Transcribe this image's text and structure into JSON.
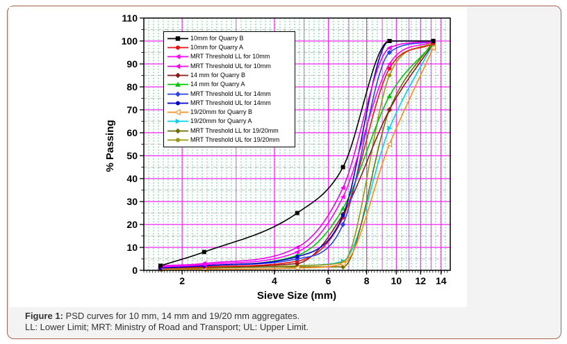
{
  "figure": {
    "caption_prefix": "Figure 1:",
    "caption_text": " PSD curves for 10 mm, 14 mm and 19/20 mm aggregates.",
    "caption_line2": "LL: Lower Limit; MRT: Ministry of Road and Transport; UL: Upper Limit.",
    "border_color": "#a9624e",
    "panel_bg": "#f3f3f3"
  },
  "chart_data": {
    "type": "line",
    "title": "",
    "xlabel": "Sieve Size (mm)",
    "ylabel": "% Passing",
    "x_scale": "log",
    "xlim": [
      1.5,
      15
    ],
    "ylim": [
      0,
      110
    ],
    "x_ticks": [
      2,
      4,
      6,
      8,
      10,
      12,
      14
    ],
    "y_ticks": [
      0,
      10,
      20,
      30,
      40,
      50,
      60,
      70,
      80,
      90,
      100,
      110
    ],
    "grid": {
      "h_major_color": "#f224f2",
      "h_minor_color": "#aaaaaa",
      "v_major_even_color": "#e53ae5",
      "v_major_odd_color": "#b76fd4",
      "v_minor_color": "#00b050",
      "legend_position": "upper-left-inside"
    },
    "x": [
      1.7,
      2.36,
      4.75,
      6.7,
      9.5,
      13.2
    ],
    "series": [
      {
        "name": "10mm for Quarry B",
        "color": "#000000",
        "marker": "square",
        "values": [
          2,
          8,
          25,
          45,
          100,
          100
        ]
      },
      {
        "name": "10mm for Quarry A",
        "color": "#ee1111",
        "marker": "circle",
        "values": [
          1,
          1.5,
          4,
          23,
          88,
          99
        ]
      },
      {
        "name": "MRT Threshold LL for 10mm",
        "color": "#ff00ff",
        "marker": "triangle-left",
        "values": [
          1.5,
          2.5,
          8,
          32,
          90,
          100
        ]
      },
      {
        "name": "MRT Threshold UL for 10mm",
        "color": "#ee00ee",
        "marker": "triangle-left",
        "values": [
          2,
          3,
          10,
          36,
          97,
          100
        ]
      },
      {
        "name": "14 mm for Quarry B",
        "color": "#8b1a1a",
        "marker": "diamond",
        "values": [
          1,
          1.5,
          3,
          24.5,
          70,
          99
        ]
      },
      {
        "name": "14 mm for Quarry A",
        "color": "#00c800",
        "marker": "triangle-up",
        "values": [
          1.5,
          2,
          6.5,
          27,
          76,
          99
        ]
      },
      {
        "name": "MRT Threshold UL for 14mm",
        "color": "#2b3fe8",
        "marker": "diamond",
        "values": [
          1,
          2,
          5,
          20,
          95,
          100
        ]
      },
      {
        "name": "MRT Threshold UL for 14mm",
        "color": "#0000c8",
        "marker": "circle",
        "values": [
          1,
          2,
          6,
          24,
          100,
          100
        ]
      },
      {
        "name": "19/20mm for Quarry B",
        "color": "#ff8c1a",
        "marker": "triangle-left-open",
        "values": [
          0.5,
          0.5,
          1,
          2.8,
          55,
          97
        ]
      },
      {
        "name": "19/20mm for Quarry A",
        "color": "#00d2f0",
        "marker": "triangle-right",
        "values": [
          0.5,
          1,
          2,
          4,
          62,
          99
        ]
      },
      {
        "name": "MRT Threshold LL for 19/20mm",
        "color": "#6e6e00",
        "marker": "diamond",
        "values": [
          0.5,
          1,
          1.5,
          1.5,
          70,
          100
        ]
      },
      {
        "name": "MRT Threshold UL for 19/20mm",
        "color": "#97970f",
        "marker": "circle",
        "values": [
          0.5,
          1,
          2,
          3.5,
          85,
          100
        ]
      }
    ],
    "draw_order": [
      9,
      11,
      10,
      8,
      4,
      5,
      1,
      6,
      7,
      2,
      3,
      0
    ]
  }
}
